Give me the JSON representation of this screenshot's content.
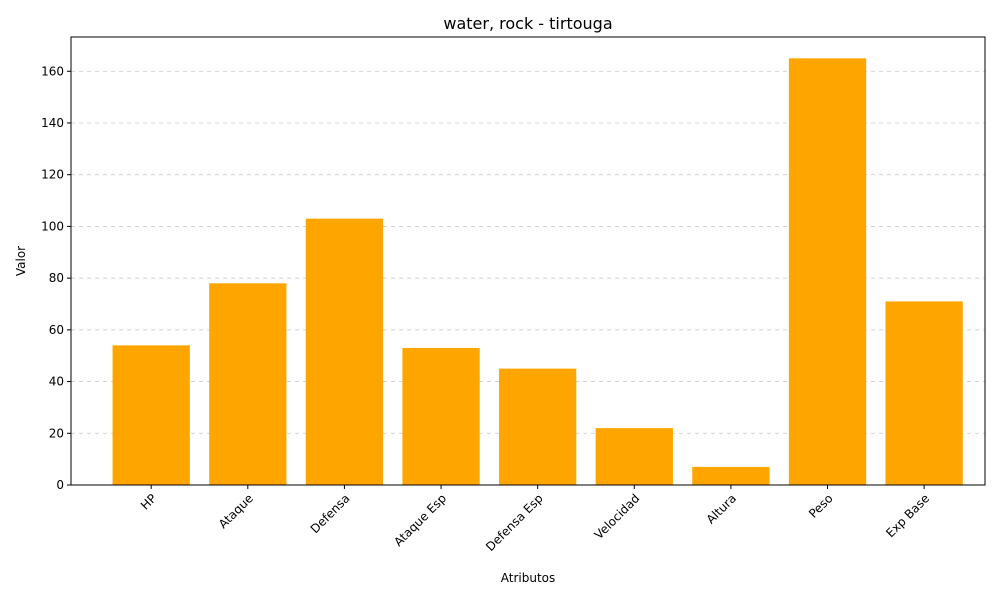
{
  "chart_data": {
    "type": "bar",
    "title": "water, rock - tirtouga",
    "xlabel": "Atributos",
    "ylabel": "Valor",
    "categories": [
      "HP",
      "Ataque",
      "Defensa",
      "Ataque Esp",
      "Defensa Esp",
      "Velocidad",
      "Altura",
      "Peso",
      "Exp Base"
    ],
    "values": [
      54,
      78,
      103,
      53,
      45,
      22,
      7,
      165,
      71
    ],
    "ylim": [
      0,
      173.25
    ],
    "yticks": [
      0,
      20,
      40,
      60,
      80,
      100,
      120,
      140,
      160
    ],
    "bar_color": "#FFA500",
    "grid": "y-dashed",
    "tick_rotation": 45
  }
}
